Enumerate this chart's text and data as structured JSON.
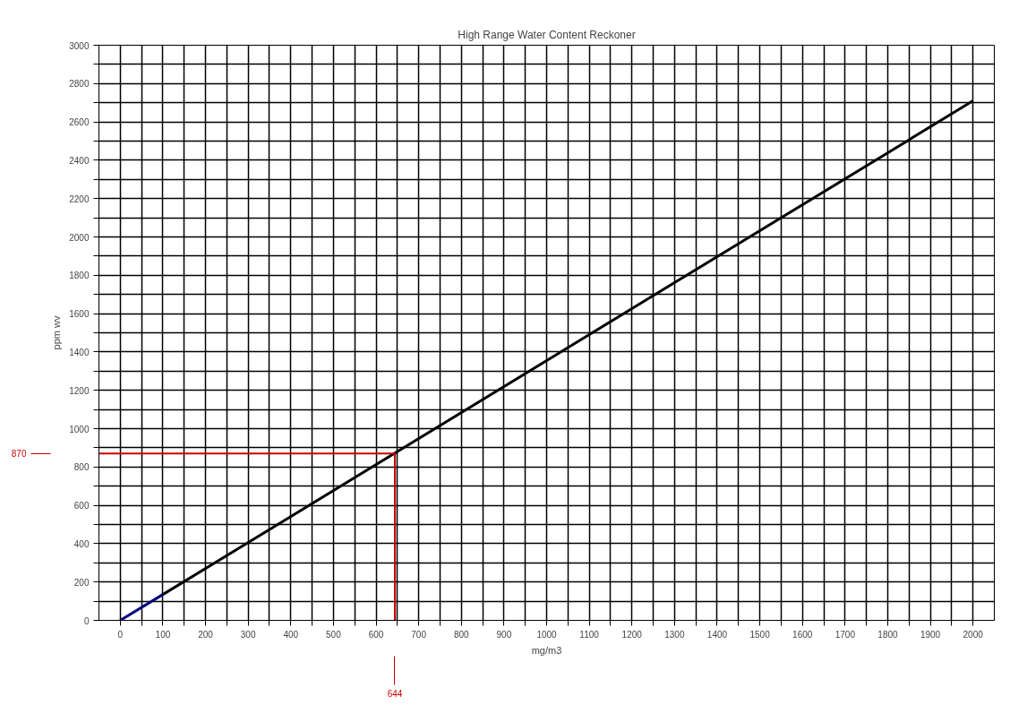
{
  "chart_data": {
    "type": "line",
    "title": "High Range Water Content Reckoner",
    "xlabel": "mg/m3",
    "ylabel": "ppm wv",
    "series": [
      {
        "color": "#000080",
        "x": [
          0,
          100
        ],
        "values": [
          0,
          135
        ]
      },
      {
        "color": "#000000",
        "x": [
          100,
          2000
        ],
        "values": [
          135,
          2710
        ]
      }
    ],
    "xlim": [
      -50,
      2050
    ],
    "ylim": [
      0,
      3000
    ],
    "xticks": [
      0,
      {
        "value": 50,
        "label": null
      },
      100,
      {
        "value": 150,
        "label": null
      },
      200,
      {
        "value": 250,
        "label": null
      },
      300,
      {
        "value": 350,
        "label": null
      },
      400,
      {
        "value": 450,
        "label": null
      },
      500,
      {
        "value": 550,
        "label": null
      },
      600,
      {
        "value": 650,
        "label": null
      },
      700,
      {
        "value": 750,
        "label": null
      },
      800,
      {
        "value": 850,
        "label": null
      },
      900,
      {
        "value": 950,
        "label": null
      },
      1000,
      {
        "value": 1050,
        "label": null
      },
      1100,
      {
        "value": 1150,
        "label": null
      },
      1200,
      {
        "value": 1250,
        "label": null
      },
      1300,
      {
        "value": 1350,
        "label": null
      },
      1400,
      {
        "value": 1450,
        "label": null
      },
      1500,
      {
        "value": 1550,
        "label": null
      },
      1600,
      {
        "value": 1650,
        "label": null
      },
      1700,
      {
        "value": 1750,
        "label": null
      },
      1800,
      {
        "value": 1850,
        "label": null
      },
      1900,
      {
        "value": 1950,
        "label": null
      },
      2000
    ],
    "yticks": [
      0,
      {
        "value": 100,
        "label": null
      },
      200,
      {
        "value": 300,
        "label": null
      },
      400,
      {
        "value": 500,
        "label": null
      },
      600,
      {
        "value": 700,
        "label": null
      },
      800,
      {
        "value": 900,
        "label": null
      },
      1000,
      {
        "value": 1100,
        "label": null
      },
      1200,
      {
        "value": 1300,
        "label": null
      },
      1400,
      {
        "value": 1500,
        "label": null
      },
      1600,
      {
        "value": 1700,
        "label": null
      },
      1800,
      {
        "value": 1900,
        "label": null
      },
      2000,
      {
        "value": 2100,
        "label": null
      },
      2200,
      {
        "value": 2300,
        "label": null
      },
      2400,
      {
        "value": 2500,
        "label": null
      },
      2600,
      {
        "value": 2700,
        "label": null
      },
      2800,
      {
        "value": 2900,
        "label": null
      },
      3000
    ],
    "grid": true,
    "marker": "none",
    "line_style": "solid",
    "ref_lines": [
      {
        "axis": "y",
        "value": 870,
        "label": "870",
        "color": "#cc0000"
      },
      {
        "axis": "x",
        "value": 644,
        "label": "644",
        "color": "#cc0000"
      }
    ]
  }
}
